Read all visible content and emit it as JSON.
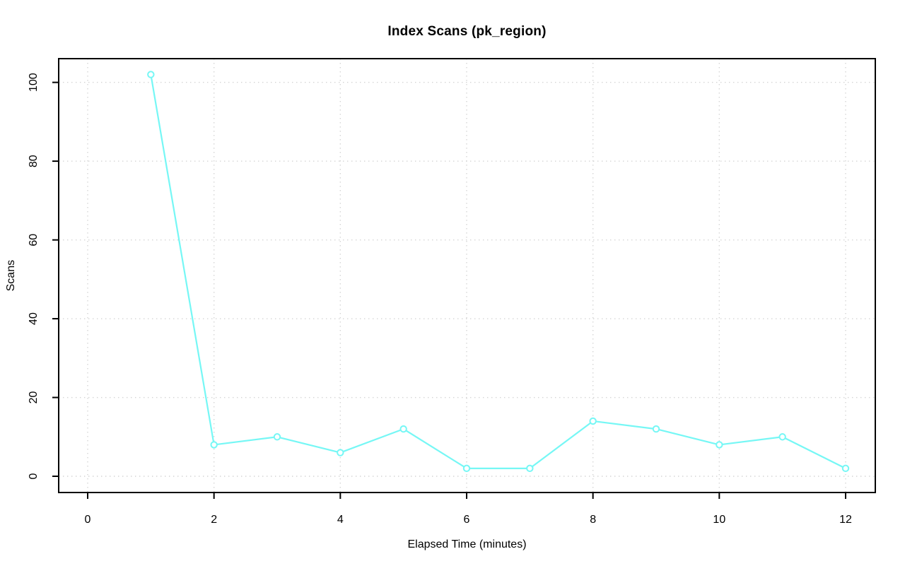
{
  "chart_data": {
    "type": "line",
    "title": "Index Scans (pk_region)",
    "xlabel": "Elapsed Time (minutes)",
    "ylabel": "Scans",
    "x": [
      1,
      2,
      3,
      4,
      5,
      6,
      7,
      8,
      9,
      10,
      11,
      12
    ],
    "values": [
      102,
      8,
      10,
      6,
      12,
      2,
      2,
      14,
      12,
      8,
      10,
      2
    ],
    "xticks": [
      0,
      2,
      4,
      6,
      8,
      10,
      12
    ],
    "yticks": [
      0,
      20,
      40,
      60,
      80,
      100
    ],
    "xlim": [
      -0.46,
      12.47
    ],
    "ylim": [
      -4.1,
      106.2
    ],
    "grid": true,
    "grid_style": "dotted",
    "legend_position": "none",
    "marker": "open-circle",
    "colors": {
      "line": "#76F7F5",
      "marker_stroke": "#76F7F5",
      "marker_fill": "#FFFFFF",
      "grid": "#D3D3D3",
      "axis": "#000000",
      "text": "#000000",
      "background": "#FFFFFF"
    }
  }
}
